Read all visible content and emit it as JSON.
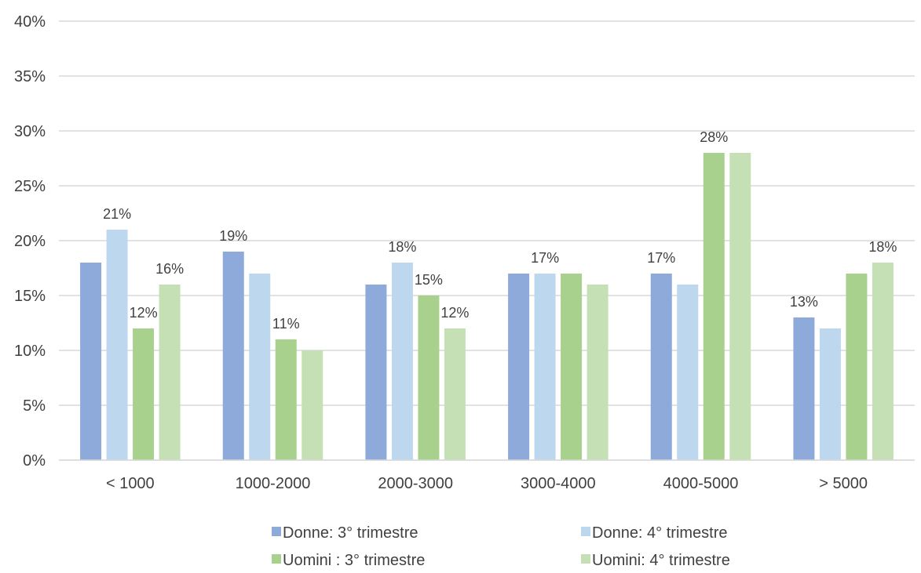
{
  "chart_data": {
    "type": "bar",
    "categories": [
      "< 1000",
      "1000-2000",
      "2000-3000",
      "3000-4000",
      "4000-5000",
      "> 5000"
    ],
    "series": [
      {
        "name": "Donne: 3° trimestre",
        "color": "#8eaadb",
        "values": [
          18,
          19,
          16,
          17,
          17,
          13
        ],
        "labels": [
          "",
          "19%",
          "",
          "",
          "17%",
          "13%"
        ]
      },
      {
        "name": "Donne: 4° trimestre",
        "color": "#bdd7ee",
        "values": [
          21,
          17,
          18,
          17,
          16,
          12
        ],
        "labels": [
          "21%",
          "",
          "18%",
          "17%",
          "",
          ""
        ]
      },
      {
        "name": "Uomini : 3° trimestre",
        "color": "#a9d18e",
        "values": [
          12,
          11,
          15,
          17,
          28,
          17
        ],
        "labels": [
          "12%",
          "11%",
          "15%",
          "",
          "28%",
          ""
        ]
      },
      {
        "name": "Uomini: 4° trimestre",
        "color": "#c5e0b4",
        "values": [
          16,
          10,
          12,
          16,
          28,
          18
        ],
        "labels": [
          "16%",
          "",
          "12%",
          "",
          "",
          "18%"
        ]
      }
    ],
    "y_ticks": [
      "0%",
      "5%",
      "10%",
      "15%",
      "20%",
      "25%",
      "30%",
      "35%",
      "40%"
    ],
    "ylim": [
      0,
      40
    ],
    "grid": true,
    "legend_position": "bottom"
  }
}
